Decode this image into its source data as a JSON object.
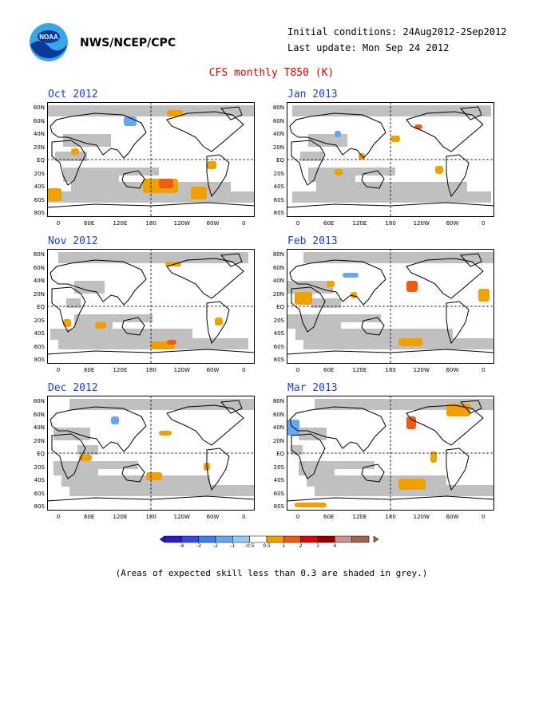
{
  "header": {
    "org": "NWS/NCEP/CPC",
    "logo_text": "NOAA",
    "initial_conditions": "Initial conditions: 24Aug2012-2Sep2012",
    "last_update": "Last update: Mon Sep 24 2012",
    "title": "CFS monthly T850 (K)"
  },
  "panels": [
    {
      "title": "Oct 2012"
    },
    {
      "title": "Jan 2013"
    },
    {
      "title": "Nov 2012"
    },
    {
      "title": "Feb 2013"
    },
    {
      "title": "Dec 2012"
    },
    {
      "title": "Mar 2013"
    }
  ],
  "lat_labels": [
    "80N",
    "60N",
    "40N",
    "20N",
    "EQ",
    "20S",
    "40S",
    "60S",
    "80S"
  ],
  "lon_labels": [
    "0",
    "60E",
    "120E",
    "180",
    "120W",
    "60W",
    "0"
  ],
  "colorbar": {
    "labels": [
      "-4",
      "-3",
      "-2",
      "-1",
      "-0.5",
      "0.5",
      "1",
      "2",
      "3",
      "4"
    ],
    "colors": [
      "#2a1cc8",
      "#3c46e0",
      "#3c82e6",
      "#64a8f0",
      "#96c8fa",
      "#ffffff",
      "#f0a000",
      "#f05a14",
      "#d20a0a",
      "#960000",
      "#c89690",
      "#a06450"
    ]
  },
  "colors": {
    "grey_skill": "#c0c0c0",
    "orange": "#f0a000",
    "red": "#f05a14",
    "darkred": "#d20a0a",
    "blue": "#64a8f0",
    "title_blue": "#1a3fd0",
    "title_red": "#e00000"
  },
  "note": "(Areas of expected skill less than 0.3 are shaded in grey.)"
}
